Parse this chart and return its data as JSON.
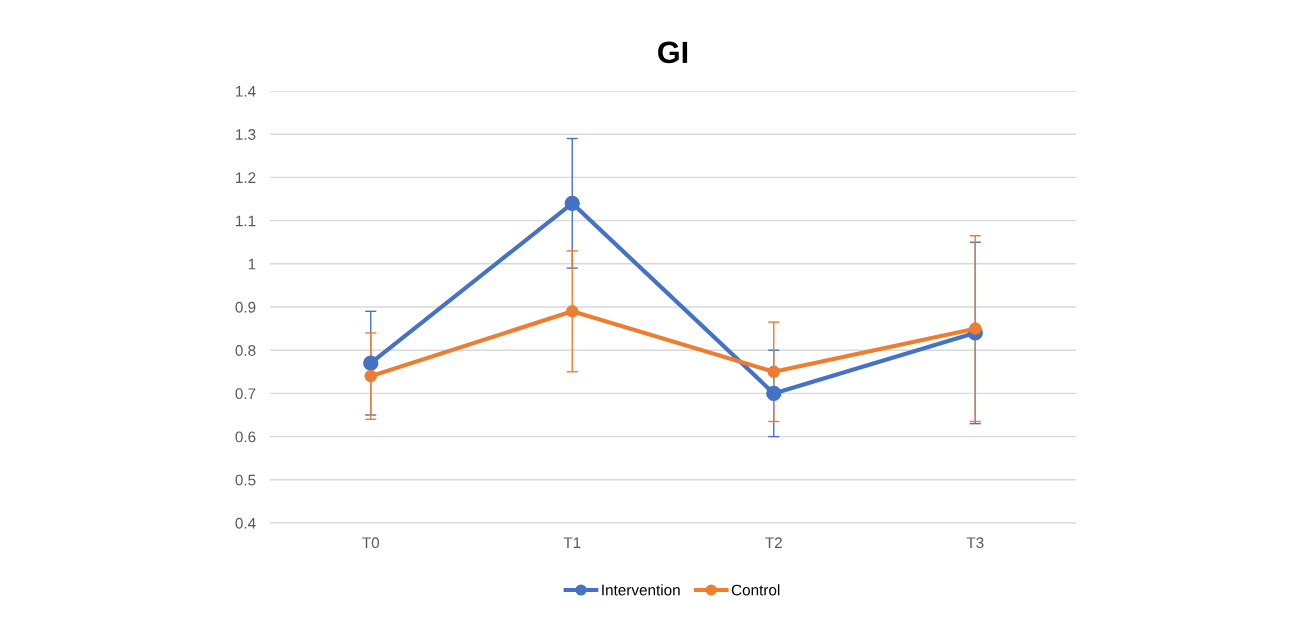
{
  "chart_data": {
    "type": "line",
    "title": "GI",
    "categories": [
      "T0",
      "T1",
      "T2",
      "T3"
    ],
    "series": [
      {
        "name": "Intervention",
        "color": "#4472c4",
        "values": [
          0.77,
          1.14,
          0.7,
          0.84
        ],
        "errors": [
          0.12,
          0.15,
          0.1,
          0.21
        ]
      },
      {
        "name": "Control",
        "color": "#ed7d31",
        "values": [
          0.74,
          0.89,
          0.75,
          0.85
        ],
        "errors": [
          0.1,
          0.14,
          0.115,
          0.215
        ]
      }
    ],
    "ylim": [
      0.4,
      1.4
    ],
    "yticks": [
      0.4,
      0.5,
      0.6,
      0.7,
      0.8,
      0.9,
      1,
      1.1,
      1.2,
      1.3,
      1.4
    ],
    "grid": "y",
    "legend": "bottom",
    "marker": "circle",
    "line_style": "solid"
  }
}
